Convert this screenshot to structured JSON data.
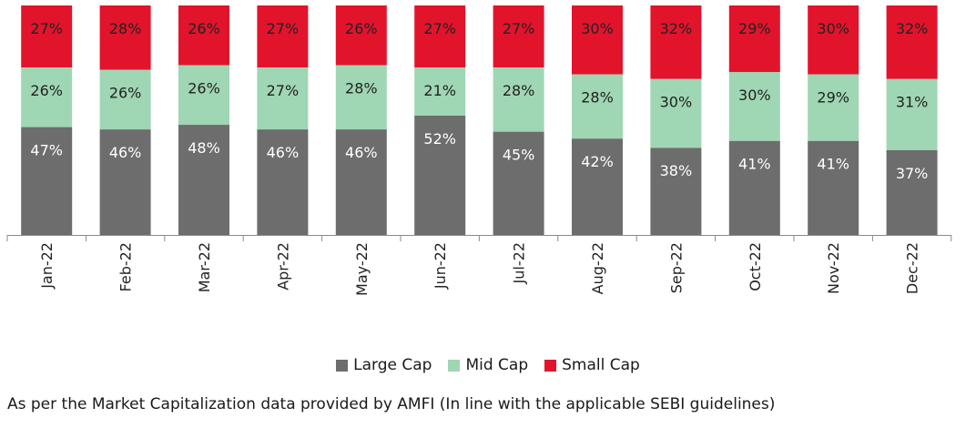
{
  "chart_data": {
    "type": "bar",
    "stacked": true,
    "categories": [
      "Jan-22",
      "Feb-22",
      "Mar-22",
      "Apr-22",
      "May-22",
      "Jun-22",
      "Jul-22",
      "Aug-22",
      "Sep-22",
      "Oct-22",
      "Nov-22",
      "Dec-22"
    ],
    "series": [
      {
        "name": "Large Cap",
        "color": "#6d6d6d",
        "values": [
          47,
          46,
          48,
          46,
          46,
          52,
          45,
          42,
          38,
          41,
          41,
          37
        ]
      },
      {
        "name": "Mid Cap",
        "color": "#9fd6b3",
        "values": [
          26,
          26,
          26,
          27,
          28,
          21,
          28,
          28,
          30,
          30,
          29,
          31
        ]
      },
      {
        "name": "Small Cap",
        "color": "#e1142c",
        "values": [
          27,
          28,
          26,
          27,
          26,
          27,
          27,
          30,
          32,
          29,
          30,
          32
        ]
      }
    ],
    "value_suffix": "%",
    "ylim": [
      0,
      100
    ],
    "legend_position": "bottom",
    "grid": false
  },
  "footnote": "As per the Market Capitalization data provided by AMFI (In line with the applicable SEBI guidelines)"
}
